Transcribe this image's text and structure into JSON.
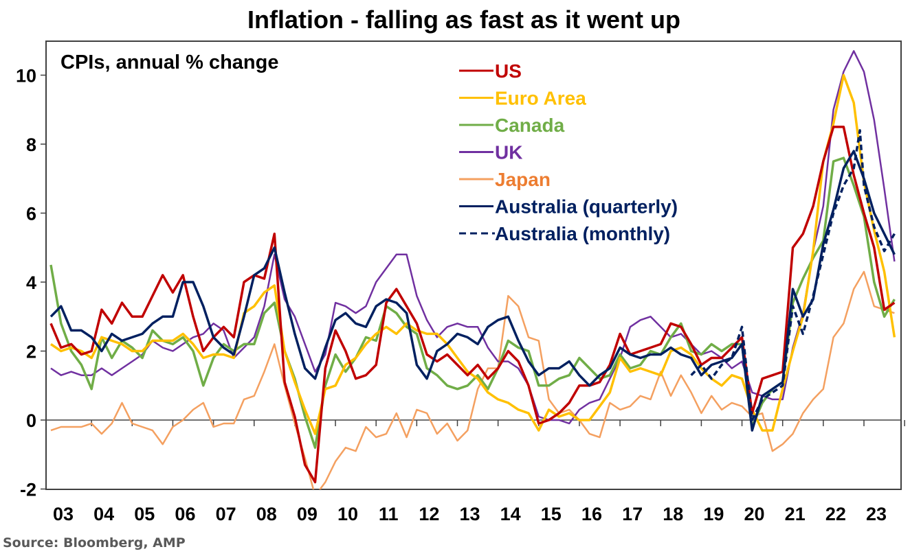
{
  "chart_data": {
    "type": "line",
    "title": "Inflation - falling as fast as it went up",
    "subtitle": "CPIs, annual % change",
    "source": "Source: Bloomberg, AMP",
    "xlabel": "",
    "ylabel": "",
    "xlim": [
      2003,
      2024
    ],
    "ylim": [
      -2,
      11
    ],
    "yticks": [
      -2,
      0,
      2,
      4,
      6,
      8,
      10
    ],
    "xtick_labels": [
      "03",
      "04",
      "05",
      "06",
      "07",
      "08",
      "09",
      "10",
      "11",
      "12",
      "13",
      "14",
      "15",
      "16",
      "17",
      "18",
      "19",
      "20",
      "21",
      "22",
      "23"
    ],
    "xtick_years": [
      2003,
      2004,
      2005,
      2006,
      2007,
      2008,
      2009,
      2010,
      2011,
      2012,
      2013,
      2014,
      2015,
      2016,
      2017,
      2018,
      2019,
      2020,
      2021,
      2022,
      2023
    ],
    "grid": false,
    "zero_line": true,
    "legend_position": "top-center",
    "series": [
      {
        "name": "US",
        "color": "#C00000",
        "dash": false,
        "x": [
          2003,
          2003.25,
          2003.5,
          2003.75,
          2004,
          2004.25,
          2004.5,
          2004.75,
          2005,
          2005.25,
          2005.5,
          2005.75,
          2006,
          2006.25,
          2006.5,
          2006.75,
          2007,
          2007.25,
          2007.5,
          2007.75,
          2008,
          2008.25,
          2008.5,
          2008.75,
          2009,
          2009.25,
          2009.5,
          2009.75,
          2010,
          2010.25,
          2010.5,
          2010.75,
          2011,
          2011.25,
          2011.5,
          2011.75,
          2012,
          2012.25,
          2012.5,
          2012.75,
          2013,
          2013.25,
          2013.5,
          2013.75,
          2014,
          2014.25,
          2014.5,
          2014.75,
          2015,
          2015.25,
          2015.5,
          2015.75,
          2016,
          2016.25,
          2016.5,
          2016.75,
          2017,
          2017.25,
          2017.5,
          2017.75,
          2018,
          2018.25,
          2018.5,
          2018.75,
          2019,
          2019.25,
          2019.5,
          2019.75,
          2020,
          2020.25,
          2020.5,
          2020.75,
          2021,
          2021.25,
          2021.5,
          2021.75,
          2022,
          2022.25,
          2022.5,
          2022.75,
          2023,
          2023.25,
          2023.5,
          2023.75
        ],
        "values": [
          2.8,
          2.1,
          2.2,
          1.9,
          2.0,
          3.2,
          2.8,
          3.4,
          3.0,
          3.0,
          3.6,
          4.2,
          3.7,
          4.2,
          3.0,
          2.0,
          2.4,
          2.7,
          2.4,
          4.0,
          4.2,
          4.1,
          5.4,
          1.1,
          0.1,
          -1.3,
          -1.8,
          1.5,
          2.6,
          2.0,
          1.2,
          1.3,
          1.6,
          3.4,
          3.8,
          3.3,
          2.8,
          1.9,
          1.7,
          1.9,
          1.6,
          1.3,
          1.6,
          1.2,
          1.5,
          2.0,
          1.7,
          1.0,
          -0.1,
          0.0,
          0.2,
          0.5,
          1.0,
          1.0,
          1.1,
          1.6,
          2.5,
          1.9,
          2.0,
          2.1,
          2.2,
          2.8,
          2.7,
          2.2,
          1.6,
          1.8,
          1.8,
          2.1,
          2.4,
          0.2,
          1.2,
          1.3,
          1.4,
          5.0,
          5.4,
          6.2,
          7.5,
          8.5,
          8.5,
          7.1,
          6.0,
          5.0,
          3.2,
          3.4
        ]
      },
      {
        "name": "Euro Area",
        "color": "#FFC000",
        "dash": false,
        "x": [
          2003,
          2003.25,
          2003.5,
          2003.75,
          2004,
          2004.25,
          2004.5,
          2004.75,
          2005,
          2005.25,
          2005.5,
          2005.75,
          2006,
          2006.25,
          2006.5,
          2006.75,
          2007,
          2007.25,
          2007.5,
          2007.75,
          2008,
          2008.25,
          2008.5,
          2008.75,
          2009,
          2009.25,
          2009.5,
          2009.75,
          2010,
          2010.25,
          2010.5,
          2010.75,
          2011,
          2011.25,
          2011.5,
          2011.75,
          2012,
          2012.25,
          2012.5,
          2012.75,
          2013,
          2013.25,
          2013.5,
          2013.75,
          2014,
          2014.25,
          2014.5,
          2014.75,
          2015,
          2015.25,
          2015.5,
          2015.75,
          2016,
          2016.25,
          2016.5,
          2016.75,
          2017,
          2017.25,
          2017.5,
          2017.75,
          2018,
          2018.25,
          2018.5,
          2018.75,
          2019,
          2019.25,
          2019.5,
          2019.75,
          2020,
          2020.25,
          2020.5,
          2020.75,
          2021,
          2021.25,
          2021.5,
          2021.75,
          2022,
          2022.25,
          2022.5,
          2022.75,
          2023,
          2023.25,
          2023.5,
          2023.75
        ],
        "values": [
          2.2,
          2.0,
          2.1,
          2.0,
          1.8,
          2.4,
          2.3,
          2.2,
          2.0,
          2.0,
          2.3,
          2.3,
          2.3,
          2.5,
          2.2,
          1.8,
          1.9,
          1.9,
          1.8,
          3.1,
          3.3,
          3.7,
          3.9,
          2.0,
          1.1,
          0.3,
          -0.4,
          0.9,
          1.0,
          1.6,
          1.8,
          2.2,
          2.5,
          2.7,
          2.5,
          2.8,
          2.6,
          2.5,
          2.5,
          2.2,
          1.8,
          1.4,
          1.2,
          0.8,
          0.6,
          0.5,
          0.3,
          0.2,
          -0.3,
          0.3,
          0.1,
          0.2,
          0.0,
          0.0,
          0.4,
          0.8,
          1.8,
          1.4,
          1.5,
          1.4,
          1.3,
          2.0,
          2.1,
          1.9,
          1.5,
          1.2,
          1.0,
          1.3,
          1.2,
          0.3,
          -0.3,
          -0.3,
          0.9,
          2.0,
          3.0,
          4.9,
          7.5,
          8.6,
          10.0,
          9.2,
          6.9,
          5.5,
          4.3,
          2.4
        ]
      },
      {
        "name": "Canada",
        "color": "#70AD47",
        "dash": false,
        "x": [
          2003,
          2003.25,
          2003.5,
          2003.75,
          2004,
          2004.25,
          2004.5,
          2004.75,
          2005,
          2005.25,
          2005.5,
          2005.75,
          2006,
          2006.25,
          2006.5,
          2006.75,
          2007,
          2007.25,
          2007.5,
          2007.75,
          2008,
          2008.25,
          2008.5,
          2008.75,
          2009,
          2009.25,
          2009.5,
          2009.75,
          2010,
          2010.25,
          2010.5,
          2010.75,
          2011,
          2011.25,
          2011.5,
          2011.75,
          2012,
          2012.25,
          2012.5,
          2012.75,
          2013,
          2013.25,
          2013.5,
          2013.75,
          2014,
          2014.25,
          2014.5,
          2014.75,
          2015,
          2015.25,
          2015.5,
          2015.75,
          2016,
          2016.25,
          2016.5,
          2016.75,
          2017,
          2017.25,
          2017.5,
          2017.75,
          2018,
          2018.25,
          2018.5,
          2018.75,
          2019,
          2019.25,
          2019.5,
          2019.75,
          2020,
          2020.25,
          2020.5,
          2020.75,
          2021,
          2021.25,
          2021.5,
          2021.75,
          2022,
          2022.25,
          2022.5,
          2022.75,
          2023,
          2023.25,
          2023.5,
          2023.75
        ],
        "values": [
          4.5,
          2.8,
          2.0,
          1.6,
          0.9,
          2.4,
          1.8,
          2.3,
          2.1,
          1.8,
          2.6,
          2.3,
          2.2,
          2.4,
          2.0,
          1.0,
          1.8,
          2.2,
          2.0,
          2.2,
          2.2,
          3.1,
          3.4,
          2.0,
          1.2,
          0.1,
          -0.8,
          1.0,
          1.9,
          1.4,
          1.8,
          2.4,
          2.3,
          3.3,
          3.1,
          2.7,
          2.5,
          1.5,
          1.3,
          1.0,
          0.9,
          1.0,
          1.3,
          0.9,
          1.5,
          2.3,
          2.1,
          2.0,
          1.0,
          1.0,
          1.2,
          1.3,
          1.8,
          1.5,
          1.2,
          1.3,
          1.9,
          1.5,
          1.6,
          2.0,
          1.9,
          2.4,
          2.8,
          2.0,
          1.9,
          2.2,
          2.0,
          2.2,
          2.2,
          -0.2,
          0.5,
          0.9,
          1.1,
          3.4,
          4.1,
          4.7,
          5.2,
          7.5,
          7.6,
          6.8,
          5.9,
          4.0,
          3.0,
          3.5
        ]
      },
      {
        "name": "UK",
        "color": "#7030A0",
        "dash": false,
        "x": [
          2003,
          2003.25,
          2003.5,
          2003.75,
          2004,
          2004.25,
          2004.5,
          2004.75,
          2005,
          2005.25,
          2005.5,
          2005.75,
          2006,
          2006.25,
          2006.5,
          2006.75,
          2007,
          2007.25,
          2007.5,
          2007.75,
          2008,
          2008.25,
          2008.5,
          2008.75,
          2009,
          2009.25,
          2009.5,
          2009.75,
          2010,
          2010.25,
          2010.5,
          2010.75,
          2011,
          2011.25,
          2011.5,
          2011.75,
          2012,
          2012.25,
          2012.5,
          2012.75,
          2013,
          2013.25,
          2013.5,
          2013.75,
          2014,
          2014.25,
          2014.5,
          2014.75,
          2015,
          2015.25,
          2015.5,
          2015.75,
          2016,
          2016.25,
          2016.5,
          2016.75,
          2017,
          2017.25,
          2017.5,
          2017.75,
          2018,
          2018.25,
          2018.5,
          2018.75,
          2019,
          2019.25,
          2019.5,
          2019.75,
          2020,
          2020.25,
          2020.5,
          2020.75,
          2021,
          2021.25,
          2021.5,
          2021.75,
          2022,
          2022.25,
          2022.5,
          2022.75,
          2023,
          2023.25,
          2023.5,
          2023.75
        ],
        "values": [
          1.5,
          1.3,
          1.4,
          1.3,
          1.3,
          1.5,
          1.3,
          1.5,
          1.7,
          1.9,
          2.3,
          2.1,
          2.0,
          2.2,
          2.4,
          2.5,
          2.8,
          2.6,
          1.8,
          2.1,
          2.4,
          3.3,
          4.8,
          3.5,
          3.0,
          2.2,
          1.4,
          1.9,
          3.4,
          3.3,
          3.1,
          3.3,
          4.0,
          4.4,
          4.8,
          4.8,
          3.6,
          2.9,
          2.4,
          2.7,
          2.8,
          2.7,
          2.7,
          2.1,
          1.7,
          1.7,
          1.5,
          1.0,
          0.1,
          0.0,
          0.0,
          -0.1,
          0.3,
          0.5,
          0.6,
          1.2,
          1.8,
          2.7,
          2.9,
          3.0,
          2.7,
          2.4,
          2.5,
          2.2,
          1.9,
          2.0,
          1.8,
          1.5,
          1.7,
          0.8,
          0.7,
          0.6,
          0.6,
          2.1,
          3.1,
          4.9,
          6.2,
          9.0,
          10.1,
          10.7,
          10.1,
          8.7,
          6.7,
          4.6
        ]
      },
      {
        "name": "Japan",
        "color": "#F4A060",
        "dash": false,
        "x": [
          2003,
          2003.25,
          2003.5,
          2003.75,
          2004,
          2004.25,
          2004.5,
          2004.75,
          2005,
          2005.25,
          2005.5,
          2005.75,
          2006,
          2006.25,
          2006.5,
          2006.75,
          2007,
          2007.25,
          2007.5,
          2007.75,
          2008,
          2008.25,
          2008.5,
          2008.75,
          2009,
          2009.25,
          2009.5,
          2009.75,
          2010,
          2010.25,
          2010.5,
          2010.75,
          2011,
          2011.25,
          2011.5,
          2011.75,
          2012,
          2012.25,
          2012.5,
          2012.75,
          2013,
          2013.25,
          2013.5,
          2013.75,
          2014,
          2014.25,
          2014.5,
          2014.75,
          2015,
          2015.25,
          2015.5,
          2015.75,
          2016,
          2016.25,
          2016.5,
          2016.75,
          2017,
          2017.25,
          2017.5,
          2017.75,
          2018,
          2018.25,
          2018.5,
          2018.75,
          2019,
          2019.25,
          2019.5,
          2019.75,
          2020,
          2020.25,
          2020.5,
          2020.75,
          2021,
          2021.25,
          2021.5,
          2021.75,
          2022,
          2022.25,
          2022.5,
          2022.75,
          2023,
          2023.25,
          2023.5,
          2023.75
        ],
        "values": [
          -0.3,
          -0.2,
          -0.2,
          -0.2,
          -0.1,
          -0.4,
          -0.1,
          0.5,
          -0.1,
          -0.2,
          -0.3,
          -0.7,
          -0.2,
          0.0,
          0.3,
          0.5,
          -0.2,
          -0.1,
          -0.1,
          0.6,
          0.7,
          1.4,
          2.2,
          1.0,
          -0.1,
          -1.1,
          -2.2,
          -1.8,
          -1.2,
          -0.8,
          -0.9,
          -0.2,
          -0.5,
          -0.4,
          0.2,
          -0.5,
          0.3,
          0.2,
          -0.4,
          -0.1,
          -0.6,
          -0.3,
          0.9,
          1.5,
          1.5,
          3.6,
          3.3,
          2.4,
          2.3,
          0.6,
          0.2,
          0.3,
          0.0,
          -0.4,
          -0.5,
          0.5,
          0.3,
          0.4,
          0.7,
          0.6,
          1.4,
          0.7,
          1.3,
          0.8,
          0.2,
          0.7,
          0.3,
          0.5,
          0.4,
          0.1,
          0.2,
          -0.9,
          -0.7,
          -0.4,
          0.2,
          0.6,
          0.9,
          2.4,
          2.8,
          3.8,
          4.3,
          3.3,
          3.2,
          3.1
        ]
      },
      {
        "name": "Australia (quarterly)",
        "color": "#002060",
        "dash": false,
        "x": [
          2003,
          2003.25,
          2003.5,
          2003.75,
          2004,
          2004.25,
          2004.5,
          2004.75,
          2005,
          2005.25,
          2005.5,
          2005.75,
          2006,
          2006.25,
          2006.5,
          2006.75,
          2007,
          2007.25,
          2007.5,
          2007.75,
          2008,
          2008.25,
          2008.5,
          2008.75,
          2009,
          2009.25,
          2009.5,
          2009.75,
          2010,
          2010.25,
          2010.5,
          2010.75,
          2011,
          2011.25,
          2011.5,
          2011.75,
          2012,
          2012.25,
          2012.5,
          2012.75,
          2013,
          2013.25,
          2013.5,
          2013.75,
          2014,
          2014.25,
          2014.5,
          2014.75,
          2015,
          2015.25,
          2015.5,
          2015.75,
          2016,
          2016.25,
          2016.5,
          2016.75,
          2017,
          2017.25,
          2017.5,
          2017.75,
          2018,
          2018.25,
          2018.5,
          2018.75,
          2019,
          2019.25,
          2019.5,
          2019.75,
          2020,
          2020.25,
          2020.5,
          2020.75,
          2021,
          2021.25,
          2021.5,
          2021.75,
          2022,
          2022.25,
          2022.5,
          2022.75,
          2023,
          2023.25,
          2023.5,
          2023.75
        ],
        "values": [
          3.0,
          3.3,
          2.6,
          2.6,
          2.4,
          2.0,
          2.5,
          2.3,
          2.4,
          2.5,
          2.8,
          3.0,
          3.0,
          4.0,
          4.0,
          3.3,
          2.4,
          2.1,
          1.9,
          3.0,
          4.2,
          4.4,
          5.0,
          3.7,
          2.5,
          1.5,
          1.2,
          2.1,
          2.9,
          3.1,
          2.8,
          2.7,
          3.3,
          3.5,
          3.4,
          3.1,
          1.6,
          1.2,
          2.0,
          2.2,
          2.5,
          2.4,
          2.2,
          2.7,
          2.9,
          3.0,
          2.3,
          1.7,
          1.3,
          1.5,
          1.5,
          1.7,
          1.3,
          1.0,
          1.3,
          1.5,
          2.1,
          1.9,
          1.8,
          1.9,
          1.9,
          2.1,
          1.9,
          1.8,
          1.3,
          1.6,
          1.7,
          1.8,
          2.2,
          -0.3,
          0.7,
          0.9,
          1.1,
          3.8,
          3.0,
          3.5,
          5.1,
          6.1,
          7.3,
          7.8,
          7.0,
          6.0,
          5.4,
          4.8
        ]
      },
      {
        "name": "Australia (monthly)",
        "color": "#002060",
        "dash": true,
        "x": [
          2018.75,
          2019,
          2019.25,
          2019.5,
          2019.75,
          2020,
          2020.25,
          2020.5,
          2020.75,
          2021,
          2021.25,
          2021.5,
          2021.75,
          2022,
          2022.25,
          2022.5,
          2022.75,
          2022.9,
          2023,
          2023.25,
          2023.5,
          2023.75
        ],
        "values": [
          1.3,
          1.6,
          1.2,
          1.6,
          1.8,
          2.7,
          0.0,
          0.6,
          0.8,
          1.0,
          3.3,
          2.5,
          3.6,
          4.8,
          6.0,
          6.8,
          7.3,
          8.4,
          6.8,
          5.6,
          4.9,
          5.4
        ]
      }
    ]
  }
}
